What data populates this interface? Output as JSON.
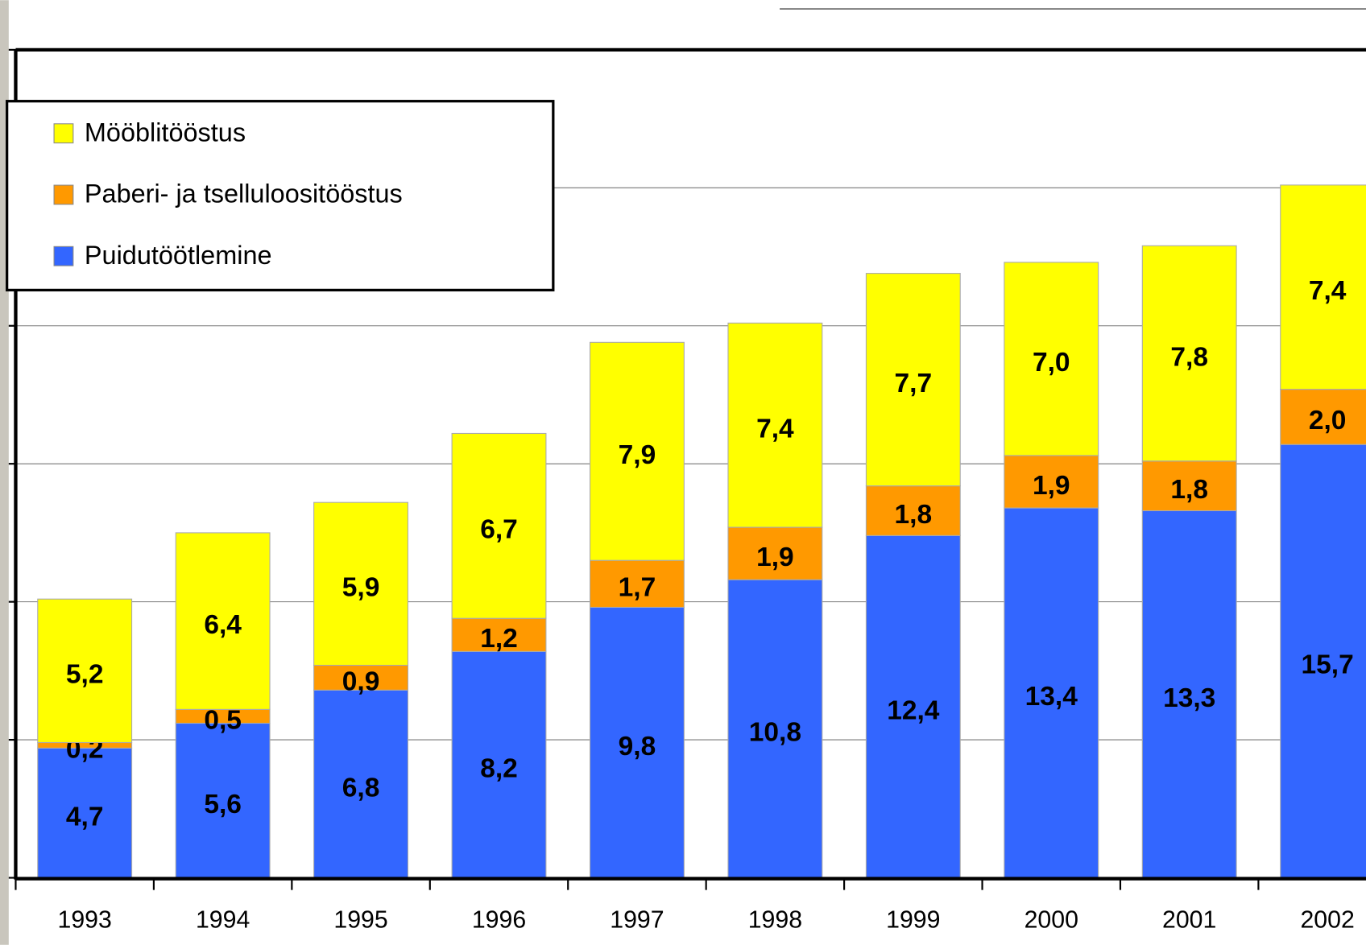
{
  "chart_data": {
    "type": "stacked_bar",
    "categories": [
      "1993",
      "1994",
      "1995",
      "1996",
      "1997",
      "1998",
      "1999",
      "2000",
      "2001",
      "2002"
    ],
    "series": [
      {
        "name": "Puidutöötlemine",
        "color": "#3366ff",
        "values": [
          4.7,
          5.6,
          6.8,
          8.2,
          9.8,
          10.8,
          12.4,
          13.4,
          13.3,
          15.7
        ],
        "value_labels": [
          "4,7",
          "5,6",
          "6,8",
          "8,2",
          "9,8",
          "10,8",
          "12,4",
          "13,4",
          "13,3",
          "15,7"
        ]
      },
      {
        "name": "Paberi- ja tselluloositööstus",
        "color": "#ff9900",
        "values": [
          0.2,
          0.5,
          0.9,
          1.2,
          1.7,
          1.9,
          1.8,
          1.9,
          1.8,
          2.0
        ],
        "value_labels": [
          "0,2",
          "0,5",
          "0,9",
          "1,2",
          "1,7",
          "1,9",
          "1,8",
          "1,9",
          "1,8",
          "2,0"
        ]
      },
      {
        "name": "Mööblitööstus",
        "color": "#ffff00",
        "values": [
          5.2,
          6.4,
          5.9,
          6.7,
          7.9,
          7.4,
          7.7,
          7.0,
          7.8,
          7.4
        ],
        "value_labels": [
          "5,2",
          "6,4",
          "5,9",
          "6,7",
          "7,9",
          "7,4",
          "7,7",
          "7,0",
          "7,8",
          "7,4"
        ]
      }
    ],
    "ylim": [
      0,
      30
    ],
    "yticks": [
      0,
      5,
      10,
      15,
      20,
      25,
      30
    ],
    "grid": true,
    "legend": "upper left"
  }
}
